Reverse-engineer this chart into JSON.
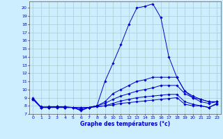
{
  "xlabel": "Graphe des températures (°c)",
  "background_color": "#cceeff",
  "line_color": "#0000cc",
  "grid_color": "#aacccc",
  "xlim": [
    -0.5,
    23.5
  ],
  "ylim": [
    7,
    20.8
  ],
  "yticks": [
    7,
    8,
    9,
    10,
    11,
    12,
    13,
    14,
    15,
    16,
    17,
    18,
    19,
    20
  ],
  "xticks": [
    0,
    1,
    2,
    3,
    4,
    5,
    6,
    7,
    8,
    9,
    10,
    11,
    12,
    13,
    14,
    15,
    16,
    17,
    18,
    19,
    20,
    21,
    22,
    23
  ],
  "series": [
    {
      "x": [
        0,
        1,
        2,
        3,
        4,
        5,
        6,
        7,
        8,
        9,
        10,
        11,
        12,
        13,
        14,
        15,
        16,
        17,
        18,
        19,
        20,
        21,
        22,
        23
      ],
      "y": [
        9.0,
        7.8,
        7.9,
        7.9,
        7.8,
        7.8,
        7.4,
        7.8,
        8.0,
        11.0,
        13.2,
        15.5,
        18.0,
        20.0,
        20.2,
        20.5,
        18.8,
        14.0,
        11.5,
        9.8,
        9.0,
        8.5,
        8.3,
        8.5
      ]
    },
    {
      "x": [
        0,
        1,
        2,
        3,
        4,
        5,
        6,
        7,
        8,
        9,
        10,
        11,
        12,
        13,
        14,
        15,
        16,
        17,
        18,
        19,
        20,
        21,
        22,
        23
      ],
      "y": [
        8.8,
        7.8,
        7.8,
        7.9,
        7.8,
        7.8,
        7.6,
        7.8,
        8.0,
        8.5,
        9.5,
        10.0,
        10.5,
        11.0,
        11.2,
        11.5,
        11.5,
        11.5,
        11.5,
        9.8,
        9.2,
        8.8,
        8.5,
        8.5
      ]
    },
    {
      "x": [
        0,
        1,
        2,
        3,
        4,
        5,
        6,
        7,
        8,
        9,
        10,
        11,
        12,
        13,
        14,
        15,
        16,
        17,
        18,
        19,
        20,
        21,
        22,
        23
      ],
      "y": [
        8.8,
        7.9,
        7.8,
        7.9,
        7.9,
        7.8,
        7.5,
        7.8,
        8.0,
        8.3,
        8.8,
        9.2,
        9.5,
        9.8,
        10.0,
        10.2,
        10.5,
        10.5,
        10.5,
        9.5,
        9.0,
        8.8,
        8.5,
        8.5
      ]
    },
    {
      "x": [
        0,
        1,
        2,
        3,
        4,
        5,
        6,
        7,
        8,
        9,
        10,
        11,
        12,
        13,
        14,
        15,
        16,
        17,
        18,
        19,
        20,
        21,
        22,
        23
      ],
      "y": [
        8.8,
        7.8,
        7.8,
        7.8,
        7.8,
        7.8,
        7.8,
        7.8,
        7.9,
        8.0,
        8.3,
        8.6,
        8.8,
        9.0,
        9.1,
        9.2,
        9.3,
        9.4,
        9.4,
        8.5,
        8.2,
        8.0,
        7.8,
        8.3
      ]
    },
    {
      "x": [
        0,
        1,
        2,
        3,
        4,
        5,
        6,
        7,
        8,
        9,
        10,
        11,
        12,
        13,
        14,
        15,
        16,
        17,
        18,
        19,
        20,
        21,
        22,
        23
      ],
      "y": [
        8.8,
        7.8,
        7.8,
        7.8,
        7.8,
        7.8,
        7.8,
        7.8,
        7.9,
        8.0,
        8.1,
        8.3,
        8.4,
        8.5,
        8.6,
        8.7,
        8.8,
        8.9,
        9.0,
        8.2,
        8.0,
        8.0,
        7.8,
        8.2
      ]
    }
  ]
}
